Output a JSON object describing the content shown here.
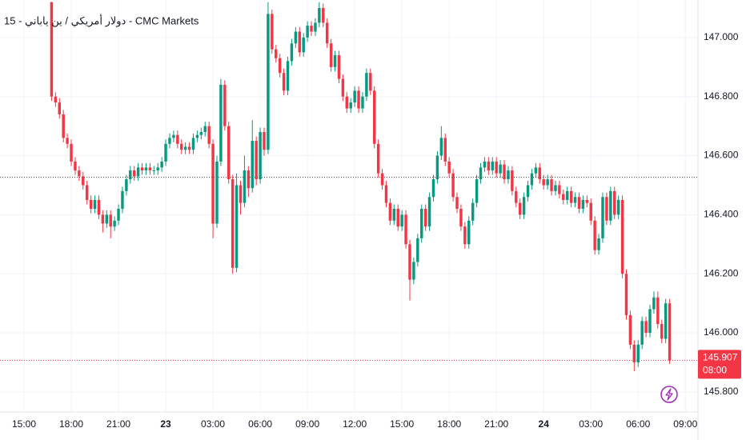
{
  "chart_data": {
    "type": "candlestick",
    "title": "دولار أمريكي / ين ياباني - 15 - CMC Markets",
    "up_color": "#089981",
    "down_color": "#f23645",
    "grid": true,
    "ylim": [
      145.732,
      147.127
    ],
    "yticks": [
      {
        "value": 145.8,
        "label": "145.800"
      },
      {
        "value": 146.0,
        "label": "146.000"
      },
      {
        "value": 146.2,
        "label": "146.200"
      },
      {
        "value": 146.4,
        "label": "146.400"
      },
      {
        "value": 146.6,
        "label": "146.600"
      },
      {
        "value": 146.8,
        "label": "146.800"
      },
      {
        "value": 147.0,
        "label": "147.000"
      }
    ],
    "xlim": [
      -13.1,
      164.2
    ],
    "xticks": [
      {
        "value": -7,
        "label": "15:00"
      },
      {
        "value": 5,
        "label": "18:00"
      },
      {
        "value": 17,
        "label": "21:00"
      },
      {
        "value": 29,
        "label": "23",
        "bold": true
      },
      {
        "value": 41,
        "label": "03:00"
      },
      {
        "value": 53,
        "label": "06:00"
      },
      {
        "value": 65,
        "label": "09:00"
      },
      {
        "value": 77,
        "label": "12:00"
      },
      {
        "value": 89,
        "label": "15:00"
      },
      {
        "value": 101,
        "label": "18:00"
      },
      {
        "value": 113,
        "label": "21:00"
      },
      {
        "value": 125,
        "label": "24",
        "bold": true
      },
      {
        "value": 137,
        "label": "03:00"
      },
      {
        "value": 149,
        "label": "06:00"
      },
      {
        "value": 161,
        "label": "09:00"
      }
    ],
    "reference_line": 146.527,
    "last_price_countdown": "08:00",
    "candles": [
      [
        147.12,
        147.12,
        146.785,
        146.8
      ],
      [
        146.8,
        146.815,
        146.765,
        146.78
      ],
      [
        146.78,
        146.795,
        146.725,
        146.74
      ],
      [
        146.74,
        146.755,
        146.645,
        146.66
      ],
      [
        146.66,
        146.675,
        146.625,
        146.64
      ],
      [
        146.64,
        146.655,
        146.565,
        146.58
      ],
      [
        146.58,
        146.595,
        146.535,
        146.55
      ],
      [
        146.55,
        146.565,
        146.515,
        146.53
      ],
      [
        146.53,
        146.545,
        146.485,
        146.5
      ],
      [
        146.5,
        146.515,
        146.435,
        146.45
      ],
      [
        146.45,
        146.465,
        146.405,
        146.42
      ],
      [
        146.42,
        146.465,
        146.405,
        146.45
      ],
      [
        146.45,
        146.465,
        146.385,
        146.4
      ],
      [
        146.4,
        146.415,
        146.34,
        146.37
      ],
      [
        146.37,
        146.415,
        146.355,
        146.4
      ],
      [
        146.4,
        146.415,
        146.32,
        146.36
      ],
      [
        146.36,
        146.395,
        146.345,
        146.38
      ],
      [
        146.38,
        146.435,
        146.365,
        146.42
      ],
      [
        146.42,
        146.495,
        146.405,
        146.48
      ],
      [
        146.48,
        146.535,
        146.465,
        146.52
      ],
      [
        146.52,
        146.565,
        146.505,
        146.55
      ],
      [
        146.55,
        146.565,
        146.515,
        146.53
      ],
      [
        146.53,
        146.575,
        146.515,
        146.56
      ],
      [
        146.56,
        146.575,
        146.535,
        146.55
      ],
      [
        146.55,
        146.575,
        146.535,
        146.56
      ],
      [
        146.56,
        146.575,
        146.535,
        146.55
      ],
      [
        146.55,
        146.565,
        146.535,
        146.55
      ],
      [
        146.55,
        146.575,
        146.535,
        146.56
      ],
      [
        146.56,
        146.595,
        146.545,
        146.58
      ],
      [
        146.58,
        146.655,
        146.565,
        146.64
      ],
      [
        146.64,
        146.675,
        146.625,
        146.66
      ],
      [
        146.66,
        146.685,
        146.645,
        146.67
      ],
      [
        146.67,
        146.685,
        146.625,
        146.64
      ],
      [
        146.64,
        146.655,
        146.605,
        146.62
      ],
      [
        146.62,
        146.645,
        146.605,
        146.63
      ],
      [
        146.63,
        146.645,
        146.605,
        146.62
      ],
      [
        146.62,
        146.675,
        146.605,
        146.66
      ],
      [
        146.66,
        146.685,
        146.645,
        146.67
      ],
      [
        146.67,
        146.695,
        146.655,
        146.68
      ],
      [
        146.68,
        146.715,
        146.665,
        146.7
      ],
      [
        146.7,
        146.715,
        146.625,
        146.64
      ],
      [
        146.64,
        146.655,
        146.32,
        146.37
      ],
      [
        146.37,
        146.6,
        146.355,
        146.58
      ],
      [
        146.58,
        146.86,
        146.565,
        146.84
      ],
      [
        146.84,
        146.855,
        146.685,
        146.7
      ],
      [
        146.7,
        146.715,
        146.505,
        146.52
      ],
      [
        146.52,
        146.535,
        146.2,
        146.22
      ],
      [
        146.22,
        146.54,
        146.205,
        146.5
      ],
      [
        146.5,
        146.515,
        146.4,
        146.44
      ],
      [
        146.44,
        146.6,
        146.425,
        146.55
      ],
      [
        146.55,
        146.565,
        146.46,
        146.49
      ],
      [
        146.49,
        146.72,
        146.475,
        146.65
      ],
      [
        146.65,
        146.665,
        146.5,
        146.52
      ],
      [
        146.52,
        146.695,
        146.505,
        146.68
      ],
      [
        146.68,
        146.695,
        146.6,
        146.62
      ],
      [
        146.62,
        147.12,
        146.605,
        147.08
      ],
      [
        147.08,
        147.095,
        146.945,
        146.96
      ],
      [
        146.96,
        146.975,
        146.915,
        146.93
      ],
      [
        146.93,
        146.945,
        146.865,
        146.88
      ],
      [
        146.88,
        146.895,
        146.805,
        146.82
      ],
      [
        146.82,
        146.935,
        146.805,
        146.92
      ],
      [
        146.92,
        146.995,
        146.905,
        146.98
      ],
      [
        146.98,
        147.035,
        146.965,
        147.02
      ],
      [
        147.02,
        147.035,
        146.935,
        146.95
      ],
      [
        146.95,
        147.015,
        146.935,
        147.0
      ],
      [
        147.0,
        147.055,
        146.985,
        147.04
      ],
      [
        147.04,
        147.055,
        147.005,
        147.02
      ],
      [
        147.02,
        147.065,
        147.005,
        147.05
      ],
      [
        147.05,
        147.12,
        147.035,
        147.1
      ],
      [
        147.1,
        147.115,
        147.035,
        147.05
      ],
      [
        147.05,
        147.065,
        146.965,
        146.98
      ],
      [
        146.98,
        146.995,
        146.885,
        146.9
      ],
      [
        146.9,
        146.955,
        146.885,
        146.94
      ],
      [
        146.94,
        146.955,
        146.845,
        146.86
      ],
      [
        146.86,
        146.875,
        146.785,
        146.8
      ],
      [
        146.8,
        146.815,
        146.745,
        146.76
      ],
      [
        146.76,
        146.795,
        146.745,
        146.78
      ],
      [
        146.78,
        146.835,
        146.765,
        146.82
      ],
      [
        146.82,
        146.835,
        146.745,
        146.76
      ],
      [
        146.76,
        146.815,
        146.745,
        146.8
      ],
      [
        146.8,
        146.895,
        146.785,
        146.88
      ],
      [
        146.88,
        146.895,
        146.805,
        146.82
      ],
      [
        146.82,
        146.835,
        146.625,
        146.64
      ],
      [
        146.64,
        146.655,
        146.525,
        146.54
      ],
      [
        146.54,
        146.555,
        146.485,
        146.5
      ],
      [
        146.5,
        146.515,
        146.425,
        146.44
      ],
      [
        146.44,
        146.455,
        146.365,
        146.38
      ],
      [
        146.38,
        146.435,
        146.365,
        146.42
      ],
      [
        146.42,
        146.435,
        146.345,
        146.36
      ],
      [
        146.36,
        146.415,
        146.345,
        146.4
      ],
      [
        146.4,
        146.415,
        146.285,
        146.3
      ],
      [
        146.3,
        146.315,
        146.11,
        146.18
      ],
      [
        146.18,
        146.255,
        146.165,
        146.24
      ],
      [
        146.24,
        146.335,
        146.225,
        146.32
      ],
      [
        146.32,
        146.435,
        146.305,
        146.42
      ],
      [
        146.42,
        146.435,
        146.345,
        146.36
      ],
      [
        146.36,
        146.475,
        146.345,
        146.46
      ],
      [
        146.46,
        146.535,
        146.445,
        146.52
      ],
      [
        146.52,
        146.615,
        146.505,
        146.6
      ],
      [
        146.6,
        146.7,
        146.585,
        146.66
      ],
      [
        146.66,
        146.675,
        146.565,
        146.58
      ],
      [
        146.58,
        146.595,
        146.525,
        146.54
      ],
      [
        146.54,
        146.555,
        146.445,
        146.46
      ],
      [
        146.46,
        146.475,
        146.405,
        146.42
      ],
      [
        146.42,
        146.435,
        146.345,
        146.36
      ],
      [
        146.36,
        146.375,
        146.285,
        146.3
      ],
      [
        146.3,
        146.395,
        146.285,
        146.38
      ],
      [
        146.38,
        146.455,
        146.365,
        146.44
      ],
      [
        146.44,
        146.535,
        146.425,
        146.52
      ],
      [
        146.52,
        146.575,
        146.505,
        146.56
      ],
      [
        146.56,
        146.595,
        146.545,
        146.58
      ],
      [
        146.58,
        146.595,
        146.535,
        146.55
      ],
      [
        146.55,
        146.595,
        146.535,
        146.58
      ],
      [
        146.58,
        146.595,
        146.525,
        146.54
      ],
      [
        146.54,
        146.585,
        146.525,
        146.57
      ],
      [
        146.57,
        146.585,
        146.505,
        146.52
      ],
      [
        146.52,
        146.565,
        146.505,
        146.55
      ],
      [
        146.55,
        146.565,
        146.465,
        146.48
      ],
      [
        146.48,
        146.495,
        146.425,
        146.44
      ],
      [
        146.44,
        146.455,
        146.385,
        146.4
      ],
      [
        146.4,
        146.475,
        146.385,
        146.46
      ],
      [
        146.46,
        146.515,
        146.445,
        146.5
      ],
      [
        146.5,
        146.555,
        146.485,
        146.54
      ],
      [
        146.54,
        146.575,
        146.525,
        146.56
      ],
      [
        146.56,
        146.575,
        146.505,
        146.52
      ],
      [
        146.52,
        146.535,
        146.485,
        146.5
      ],
      [
        146.5,
        146.535,
        146.485,
        146.52
      ],
      [
        146.52,
        146.535,
        146.465,
        146.48
      ],
      [
        146.48,
        146.515,
        146.465,
        146.5
      ],
      [
        146.5,
        146.515,
        146.455,
        146.47
      ],
      [
        146.47,
        146.485,
        146.435,
        146.45
      ],
      [
        146.45,
        146.495,
        146.435,
        146.48
      ],
      [
        146.48,
        146.495,
        146.425,
        146.44
      ],
      [
        146.44,
        146.475,
        146.425,
        146.46
      ],
      [
        146.46,
        146.475,
        146.405,
        146.42
      ],
      [
        146.42,
        146.465,
        146.405,
        146.45
      ],
      [
        146.45,
        146.465,
        146.425,
        146.44
      ],
      [
        146.44,
        146.455,
        146.365,
        146.38
      ],
      [
        146.38,
        146.395,
        146.265,
        146.28
      ],
      [
        146.28,
        146.335,
        146.265,
        146.32
      ],
      [
        146.32,
        146.475,
        146.305,
        146.46
      ],
      [
        146.46,
        146.475,
        146.365,
        146.38
      ],
      [
        146.38,
        146.495,
        146.365,
        146.48
      ],
      [
        146.48,
        146.495,
        146.385,
        146.4
      ],
      [
        146.4,
        146.465,
        146.385,
        146.45
      ],
      [
        146.45,
        146.465,
        146.185,
        146.2
      ],
      [
        146.2,
        146.215,
        146.045,
        146.06
      ],
      [
        146.06,
        146.075,
        145.945,
        145.96
      ],
      [
        145.96,
        145.975,
        145.87,
        145.9
      ],
      [
        145.9,
        145.975,
        145.885,
        145.96
      ],
      [
        145.96,
        146.055,
        145.945,
        146.04
      ],
      [
        146.04,
        146.055,
        145.985,
        146.0
      ],
      [
        146.0,
        146.095,
        145.985,
        146.08
      ],
      [
        146.08,
        146.14,
        146.065,
        146.12
      ],
      [
        146.12,
        146.14,
        146.015,
        146.03
      ],
      [
        146.03,
        146.045,
        145.965,
        145.98
      ],
      [
        145.98,
        146.115,
        145.965,
        146.1
      ],
      [
        146.1,
        146.115,
        145.895,
        145.907
      ]
    ]
  }
}
